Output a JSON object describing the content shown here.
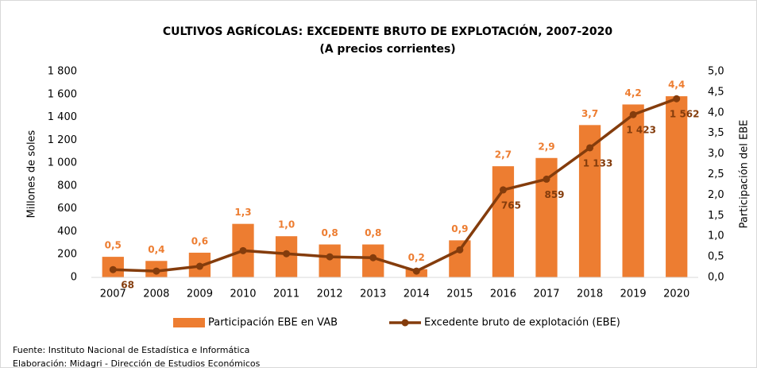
{
  "chart_data": {
    "type": "bar_line",
    "title": "CULTIVOS AGRÍCOLAS: EXCEDENTE BRUTO DE EXPLOTACIÓN, 2007-2020",
    "subtitle": "(A precios corrientes)",
    "ylabel": "Millones de soles",
    "y2label": "Participación del EBE",
    "categories": [
      "2007",
      "2008",
      "2009",
      "2010",
      "2011",
      "2012",
      "2013",
      "2014",
      "2015",
      "2016",
      "2017",
      "2018",
      "2019",
      "2020"
    ],
    "series": [
      {
        "name": "Participación EBE en VAB",
        "type": "bar",
        "axis": "y2",
        "color": "#ed7d31",
        "values": [
          0.5,
          0.4,
          0.6,
          1.3,
          1.0,
          0.8,
          0.8,
          0.2,
          0.9,
          2.7,
          2.9,
          3.7,
          4.2,
          4.4
        ],
        "value_labels": [
          "0,5",
          "0,4",
          "0,6",
          "1,3",
          "1,0",
          "0,8",
          "0,8",
          "0,2",
          "0,9",
          "2,7",
          "2,9",
          "3,7",
          "4,2",
          "4,4"
        ]
      },
      {
        "name": "Excedente bruto de explotación (EBE)",
        "type": "line",
        "axis": "y",
        "color": "#843c0c",
        "values": [
          68,
          55,
          97,
          234,
          207,
          180,
          172,
          55,
          241,
          765,
          859,
          1133,
          1423,
          1562
        ],
        "value_labels": [
          "68",
          null,
          null,
          null,
          null,
          null,
          null,
          null,
          null,
          "765",
          "859",
          "1 133",
          "1 423",
          "1 562"
        ]
      }
    ],
    "ylim": [
      0,
      1800
    ],
    "yticks": [
      0,
      200,
      400,
      600,
      800,
      {
        "value": 1000,
        "label": "1 000"
      },
      {
        "value": 1200,
        "label": "1 200"
      },
      {
        "value": 1400,
        "label": "1 400"
      },
      {
        "value": 1600,
        "label": "1 600"
      },
      {
        "value": 1800,
        "label": "1 800"
      }
    ],
    "y2lim": [
      0,
      5
    ],
    "y2ticks": [
      {
        "value": 0,
        "label": "0,0"
      },
      {
        "value": 0.5,
        "label": "0,5"
      },
      {
        "value": 1,
        "label": "1,0"
      },
      {
        "value": 1.5,
        "label": "1,5"
      },
      {
        "value": 2,
        "label": "2,0"
      },
      {
        "value": 2.5,
        "label": "2,5"
      },
      {
        "value": 3,
        "label": "3,0"
      },
      {
        "value": 3.5,
        "label": "3,5"
      },
      {
        "value": 4,
        "label": "4,0"
      },
      {
        "value": 4.5,
        "label": "4,5"
      },
      {
        "value": 5,
        "label": "5,0"
      }
    ],
    "notes": [
      "Fuente: Instituto Nacional de Estadística e Informática",
      "Elaboración: Midagri - Dirección de Estudios Económicos"
    ]
  }
}
